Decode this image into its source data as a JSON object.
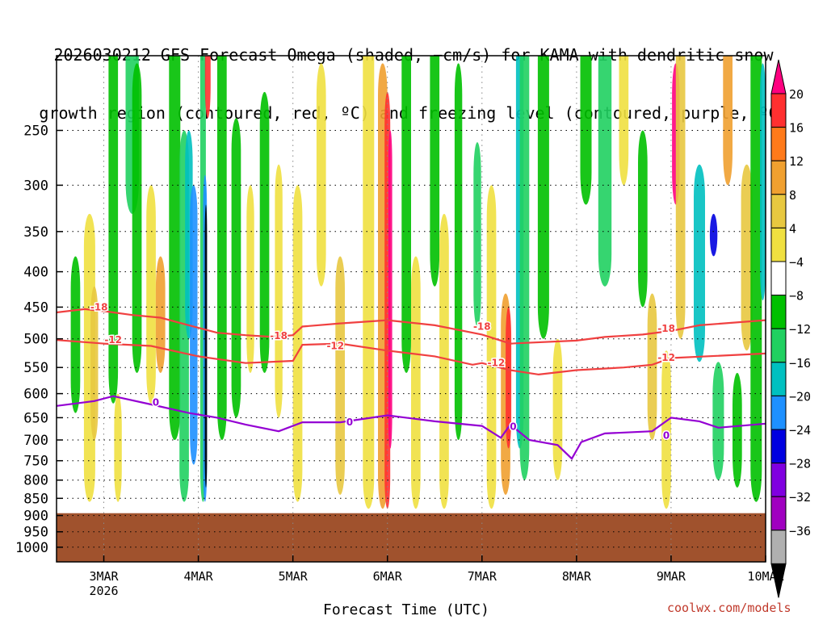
{
  "title_lines": [
    "2026030212 GFS Forecast Omega (shaded, −cm/s) for KAMA with dendritic snow",
    "growth region (contoured, red, ºC) and freezing level (contoured, purple, ºC)"
  ],
  "credit": "coolwx.com/models",
  "chart_data": {
    "type": "heatmap",
    "title": "2026030212 GFS Forecast Omega (shaded, −cm/s) for KAMA with dendritic snow growth region (contoured, red, ºC) and freezing level (contoured, purple, ºC)",
    "xlabel": "Forecast Time (UTC)",
    "ylabel": "",
    "x_ticks": [
      {
        "day": 3,
        "label": "3MAR",
        "sublabel": "2026"
      },
      {
        "day": 4,
        "label": "4MAR"
      },
      {
        "day": 5,
        "label": "5MAR"
      },
      {
        "day": 6,
        "label": "6MAR"
      },
      {
        "day": 7,
        "label": "7MAR"
      },
      {
        "day": 8,
        "label": "8MAR"
      },
      {
        "day": 9,
        "label": "9MAR"
      },
      {
        "day": 10,
        "label": "10MAR"
      }
    ],
    "xlim_days": [
      2.5,
      10.0
    ],
    "y_ticks": [
      250,
      300,
      350,
      400,
      450,
      500,
      550,
      600,
      650,
      700,
      750,
      800,
      850,
      900,
      950,
      1000
    ],
    "ylim_hpa": [
      1050,
      195
    ],
    "yscale": "log",
    "grid": true,
    "colorbar": {
      "labels": [
        "20",
        "16",
        "12",
        "8",
        "4",
        "−4",
        "−8",
        "−12",
        "−16",
        "−20",
        "−24",
        "−28",
        "−32",
        "−36"
      ],
      "colors": [
        "#ff0080",
        "#ff3030",
        "#ff7a1a",
        "#f0a030",
        "#e8c840",
        "#f0e040",
        "#ffffff",
        "#00c000",
        "#20d060",
        "#00c0c0",
        "#1e90ff",
        "#0000e0",
        "#8000e0",
        "#a000c0",
        "#b0b0b0",
        "#000000"
      ]
    },
    "terrain_color": "#a0522d",
    "surface_pressure_hpa": 893,
    "series": [
      {
        "contour": "-18",
        "color": "#f04040",
        "points": [
          [
            2.5,
            458
          ],
          [
            2.8,
            453
          ],
          [
            3.0,
            456
          ],
          [
            3.3,
            462
          ],
          [
            3.6,
            466
          ],
          [
            3.9,
            478
          ],
          [
            4.2,
            490
          ],
          [
            4.5,
            494
          ],
          [
            4.8,
            497
          ],
          [
            5.0,
            494
          ],
          [
            5.1,
            480
          ],
          [
            5.5,
            475
          ],
          [
            6.0,
            470
          ],
          [
            6.5,
            478
          ],
          [
            7.0,
            493
          ],
          [
            7.3,
            508
          ],
          [
            8.0,
            503
          ],
          [
            8.3,
            497
          ],
          [
            8.7,
            493
          ],
          [
            9.0,
            487
          ],
          [
            9.3,
            478
          ],
          [
            10.0,
            470
          ]
        ],
        "labels": [
          {
            "x": 2.95,
            "y": 450,
            "text": "-18"
          },
          {
            "x": 4.85,
            "y": 495,
            "text": "-18"
          },
          {
            "x": 7.0,
            "y": 480,
            "text": "-18"
          },
          {
            "x": 8.95,
            "y": 483,
            "text": "-18"
          }
        ]
      },
      {
        "contour": "-12",
        "color": "#f04040",
        "points": [
          [
            2.5,
            502
          ],
          [
            3.0,
            508
          ],
          [
            3.5,
            512
          ],
          [
            4.0,
            530
          ],
          [
            4.5,
            542
          ],
          [
            5.0,
            538
          ],
          [
            5.1,
            510
          ],
          [
            5.5,
            508
          ],
          [
            6.0,
            520
          ],
          [
            6.5,
            530
          ],
          [
            6.9,
            545
          ],
          [
            7.0,
            542
          ],
          [
            7.3,
            555
          ],
          [
            7.6,
            563
          ],
          [
            8.0,
            555
          ],
          [
            8.5,
            550
          ],
          [
            8.8,
            545
          ],
          [
            9.0,
            533
          ],
          [
            10.0,
            525
          ]
        ],
        "labels": [
          {
            "x": 3.1,
            "y": 502,
            "text": "-12"
          },
          {
            "x": 5.45,
            "y": 512,
            "text": "-12"
          },
          {
            "x": 7.15,
            "y": 542,
            "text": "-12"
          },
          {
            "x": 8.95,
            "y": 532,
            "text": "-12"
          }
        ]
      },
      {
        "contour": "0",
        "color": "#9400d3",
        "points": [
          [
            2.5,
            625
          ],
          [
            2.9,
            615
          ],
          [
            3.1,
            605
          ],
          [
            3.5,
            622
          ],
          [
            3.9,
            640
          ],
          [
            4.2,
            650
          ],
          [
            4.5,
            665
          ],
          [
            4.85,
            680
          ],
          [
            5.1,
            660
          ],
          [
            5.5,
            660
          ],
          [
            6.0,
            645
          ],
          [
            6.5,
            658
          ],
          [
            7.0,
            668
          ],
          [
            7.2,
            695
          ],
          [
            7.3,
            665
          ],
          [
            7.5,
            700
          ],
          [
            7.8,
            712
          ],
          [
            7.95,
            745
          ],
          [
            8.05,
            705
          ],
          [
            8.3,
            685
          ],
          [
            8.8,
            680
          ],
          [
            9.0,
            650
          ],
          [
            9.3,
            658
          ],
          [
            9.5,
            672
          ],
          [
            10.0,
            663
          ]
        ],
        "labels": [
          {
            "x": 3.55,
            "y": 618,
            "text": "0"
          },
          {
            "x": 5.6,
            "y": 660,
            "text": "0"
          },
          {
            "x": 7.33,
            "y": 670,
            "text": "0"
          },
          {
            "x": 8.95,
            "y": 690,
            "text": "0"
          }
        ]
      }
    ]
  }
}
